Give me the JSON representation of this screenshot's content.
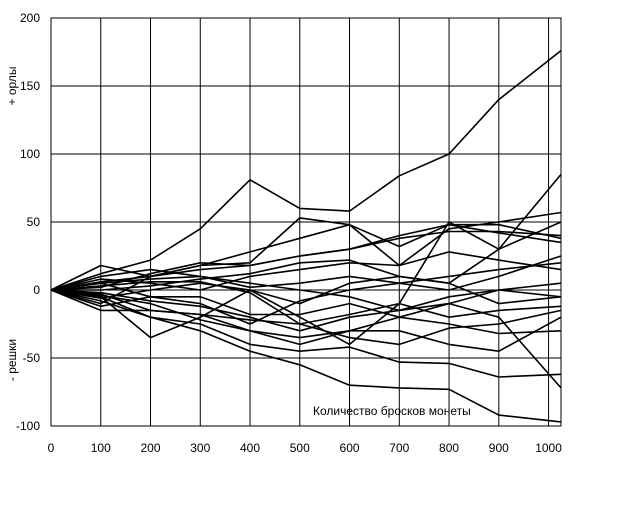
{
  "chart_data": {
    "type": "line",
    "ylabel_top": "+ орлы",
    "ylabel_bottom": "- решки",
    "annotation": "Количество бросков монеты",
    "xlim": [
      0,
      1025
    ],
    "ylim": [
      -100,
      200
    ],
    "grid": true,
    "xticks": [
      "0",
      "100",
      "200",
      "300",
      "400",
      "500",
      "600",
      "700",
      "800",
      "900",
      "1000"
    ],
    "yticks": [
      "-100",
      "-50",
      "0",
      "50",
      "100",
      "150",
      "200"
    ],
    "x": [
      0,
      100,
      200,
      300,
      400,
      500,
      600,
      700,
      800,
      900,
      1025
    ],
    "series": [
      {
        "values": [
          0,
          12,
          22,
          45,
          81,
          60,
          58,
          84,
          100,
          140,
          176
        ]
      },
      {
        "values": [
          0,
          -10,
          10,
          18,
          20,
          53,
          48,
          18,
          45,
          50,
          57
        ]
      },
      {
        "values": [
          0,
          2,
          12,
          20,
          18,
          25,
          30,
          40,
          48,
          48,
          38
        ]
      },
      {
        "values": [
          0,
          -5,
          -35,
          -20,
          0,
          -20,
          -40,
          -10,
          50,
          30,
          85
        ]
      },
      {
        "values": [
          0,
          -5,
          -20,
          -30,
          -45,
          -55,
          -70,
          -72,
          -73,
          -92,
          -97
        ]
      },
      {
        "values": [
          0,
          -8,
          -20,
          -25,
          -40,
          -45,
          -42,
          -53,
          -54,
          -64,
          -62
        ]
      },
      {
        "values": [
          0,
          18,
          10,
          18,
          28,
          38,
          48,
          32,
          48,
          42,
          35
        ]
      },
      {
        "values": [
          0,
          5,
          -5,
          -10,
          -25,
          -8,
          0,
          5,
          0,
          10,
          25
        ]
      },
      {
        "values": [
          0,
          -3,
          -15,
          -18,
          -22,
          -25,
          -18,
          -10,
          -20,
          -15,
          -12
        ]
      },
      {
        "values": [
          0,
          8,
          5,
          0,
          10,
          15,
          20,
          18,
          28,
          22,
          15
        ]
      },
      {
        "values": [
          0,
          -12,
          -5,
          -5,
          -18,
          -18,
          -10,
          -20,
          -25,
          -32,
          -30
        ]
      },
      {
        "values": [
          0,
          10,
          15,
          10,
          5,
          0,
          -5,
          -15,
          -10,
          0,
          -5
        ]
      },
      {
        "values": [
          0,
          0,
          3,
          8,
          12,
          20,
          22,
          10,
          5,
          30,
          50
        ]
      },
      {
        "values": [
          0,
          -15,
          -15,
          -18,
          -30,
          -35,
          -30,
          -30,
          -40,
          -45,
          -20
        ]
      },
      {
        "values": [
          0,
          5,
          8,
          10,
          2,
          5,
          10,
          5,
          10,
          15,
          20
        ]
      },
      {
        "values": [
          0,
          -6,
          0,
          5,
          0,
          -10,
          5,
          10,
          5,
          -10,
          -5
        ]
      },
      {
        "values": [
          0,
          3,
          6,
          6,
          -2,
          -25,
          -35,
          -40,
          -28,
          -25,
          -15
        ]
      },
      {
        "values": [
          0,
          -2,
          -8,
          -12,
          -20,
          -30,
          -20,
          -15,
          -5,
          0,
          5
        ]
      },
      {
        "values": [
          0,
          6,
          10,
          15,
          18,
          25,
          30,
          38,
          43,
          43,
          40
        ]
      },
      {
        "values": [
          0,
          -4,
          -10,
          -22,
          -30,
          -40,
          -30,
          -20,
          -10,
          -20,
          -72
        ]
      }
    ]
  }
}
